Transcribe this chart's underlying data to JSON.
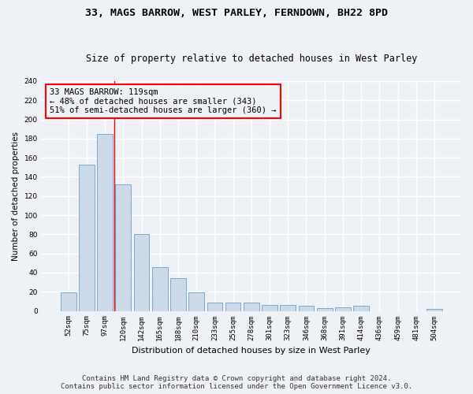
{
  "title": "33, MAGS BARROW, WEST PARLEY, FERNDOWN, BH22 8PD",
  "subtitle": "Size of property relative to detached houses in West Parley",
  "xlabel": "Distribution of detached houses by size in West Parley",
  "ylabel": "Number of detached properties",
  "bar_color": "#ccd9e8",
  "bar_edge_color": "#7aaac8",
  "categories": [
    "52sqm",
    "75sqm",
    "97sqm",
    "120sqm",
    "142sqm",
    "165sqm",
    "188sqm",
    "210sqm",
    "233sqm",
    "255sqm",
    "278sqm",
    "301sqm",
    "323sqm",
    "346sqm",
    "368sqm",
    "391sqm",
    "414sqm",
    "436sqm",
    "459sqm",
    "481sqm",
    "504sqm"
  ],
  "values": [
    19,
    153,
    185,
    132,
    80,
    46,
    34,
    19,
    9,
    9,
    9,
    6,
    6,
    5,
    3,
    4,
    5,
    0,
    0,
    0,
    2
  ],
  "ylim": [
    0,
    240
  ],
  "yticks": [
    0,
    20,
    40,
    60,
    80,
    100,
    120,
    140,
    160,
    180,
    200,
    220,
    240
  ],
  "annotation_line1": "33 MAGS BARROW: 119sqm",
  "annotation_line2": "← 48% of detached houses are smaller (343)",
  "annotation_line3": "51% of semi-detached houses are larger (360) →",
  "vline_x": 2.5,
  "footer_line1": "Contains HM Land Registry data © Crown copyright and database right 2024.",
  "footer_line2": "Contains public sector information licensed under the Open Government Licence v3.0.",
  "background_color": "#eef2f7",
  "grid_color": "#ffffff",
  "title_fontsize": 9.5,
  "subtitle_fontsize": 8.5,
  "xlabel_fontsize": 8,
  "ylabel_fontsize": 7.5,
  "tick_fontsize": 6.5,
  "annotation_fontsize": 7.5,
  "footer_fontsize": 6.5
}
